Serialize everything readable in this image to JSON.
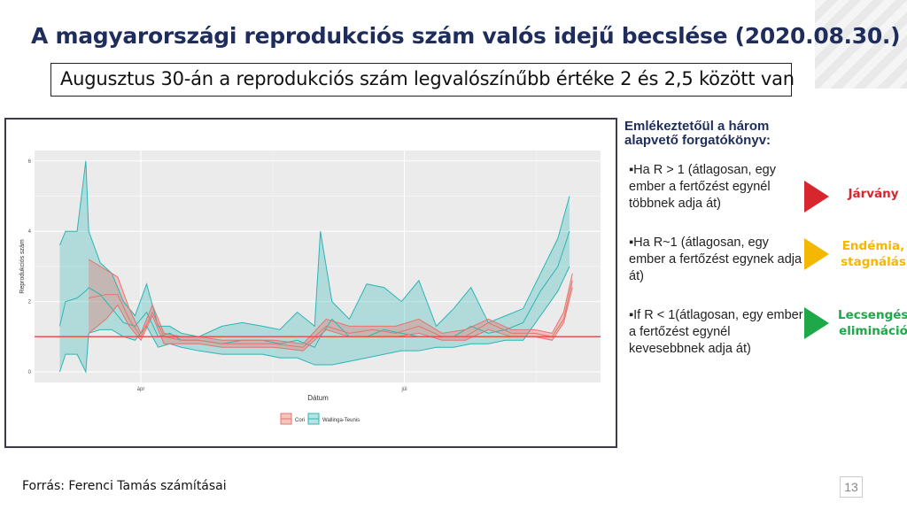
{
  "slide": {
    "title": "A magyarországi reprodukciós szám valós idejű becslése (2020.08.30.)",
    "subtitle": "Augusztus 30-án a reprodukciós szám legvalószínűbb értéke 2 és 2,5 között van",
    "source": "Forrás: Ferenci Tamás számításai",
    "page_number": "13"
  },
  "panel": {
    "title": "Emlékeztetőül a három alapvető forgatókönyv:",
    "scenarios": [
      {
        "text": "▪Ha R > 1 (átlagosan, egy ember a fertőzést egynél többnek adja át)",
        "result": "Járvány",
        "color": "#d7262e"
      },
      {
        "text": "▪Ha R~1 (átlagosan, egy ember  a fertőzést egynek adja át)",
        "result": "Endémia, stagnálás",
        "color": "#f5b800"
      },
      {
        "text": "▪If R < 1(átlagosan, egy ember a fertőzést egynél kevesebbnek adja át)",
        "result": "Lecsengés, elimináció",
        "color": "#1ea84a"
      }
    ]
  },
  "chart_data": {
    "type": "line",
    "title": "",
    "xlabel": "Dátum",
    "ylabel": "Reprodukciós szám",
    "ylim": [
      -0.3,
      6.3
    ],
    "yticks": [
      "0",
      "2",
      "4",
      "6"
    ],
    "x_unit": "days since 2020-04-01",
    "xlim": [
      -35,
      160
    ],
    "xticks": [
      {
        "label": "ápr",
        "day": 0
      },
      {
        "label": "júl",
        "day": 91
      }
    ],
    "reference_line": 1,
    "legend": {
      "position": "bottom",
      "entries": [
        "Cori",
        "Wallinga-Teunis"
      ]
    },
    "series": [
      {
        "name": "Wallinga-Teunis",
        "color": "#2bb5b5",
        "day": [
          -28,
          -26,
          -22,
          -19,
          -18,
          -14,
          -10,
          -6,
          -2,
          2,
          6,
          10,
          14,
          20,
          28,
          35,
          42,
          48,
          54,
          60,
          62,
          66,
          72,
          78,
          84,
          90,
          96,
          102,
          108,
          114,
          120,
          126,
          132,
          138,
          144,
          148
        ],
        "mean": [
          1.3,
          2.0,
          2.1,
          2.3,
          2.4,
          2.2,
          1.8,
          1.4,
          1.3,
          1.7,
          1.0,
          1.1,
          0.9,
          0.9,
          0.8,
          0.9,
          0.9,
          0.8,
          0.9,
          0.7,
          1.0,
          1.5,
          1.0,
          1.0,
          1.2,
          1.1,
          1.0,
          1.0,
          1.0,
          1.3,
          1.1,
          1.2,
          1.4,
          2.3,
          3.0,
          4.0
        ],
        "lower": [
          0,
          0.5,
          0.5,
          0,
          1.1,
          1.2,
          1.2,
          1.0,
          0.9,
          1.3,
          0.7,
          0.8,
          0.7,
          0.6,
          0.5,
          0.5,
          0.5,
          0.4,
          0.4,
          0.2,
          0.2,
          0.2,
          0.3,
          0.4,
          0.5,
          0.6,
          0.6,
          0.7,
          0.7,
          0.8,
          0.8,
          0.9,
          0.9,
          1.6,
          2.3,
          3.0
        ],
        "upper": [
          3.6,
          4.0,
          4.0,
          6.0,
          4.0,
          3.1,
          2.8,
          2.0,
          1.6,
          2.5,
          1.3,
          1.3,
          1.1,
          1.0,
          1.3,
          1.4,
          1.3,
          1.2,
          1.7,
          1.3,
          4.0,
          2.0,
          1.5,
          2.5,
          2.4,
          2.0,
          2.6,
          1.3,
          1.8,
          2.4,
          1.4,
          1.6,
          1.8,
          2.8,
          3.8,
          5.0
        ]
      },
      {
        "name": "Cori",
        "color": "#e8736b",
        "day": [
          -18,
          -12,
          -8,
          -4,
          0,
          4,
          8,
          14,
          20,
          28,
          36,
          46,
          56,
          64,
          72,
          80,
          88,
          96,
          104,
          112,
          120,
          128,
          136,
          142,
          146,
          149
        ],
        "mean": [
          2.1,
          2.2,
          2.2,
          1.5,
          1.0,
          1.7,
          1.0,
          0.9,
          0.9,
          0.8,
          0.8,
          0.8,
          0.7,
          1.3,
          1.1,
          1.2,
          1.1,
          1.3,
          1.0,
          1.0,
          1.4,
          1.1,
          1.1,
          1.0,
          1.5,
          2.6
        ],
        "lower": [
          1.1,
          1.5,
          1.9,
          1.3,
          0.9,
          1.6,
          0.8,
          0.8,
          0.8,
          0.7,
          0.7,
          0.7,
          0.6,
          1.2,
          1.0,
          1.0,
          1.0,
          1.1,
          0.9,
          0.9,
          1.2,
          1.0,
          1.0,
          0.9,
          1.4,
          2.4
        ],
        "upper": [
          3.2,
          2.9,
          2.7,
          1.8,
          1.1,
          1.9,
          1.1,
          1.0,
          1.0,
          0.9,
          0.9,
          0.9,
          0.8,
          1.5,
          1.3,
          1.3,
          1.3,
          1.5,
          1.1,
          1.2,
          1.5,
          1.2,
          1.2,
          1.1,
          1.7,
          2.8
        ]
      }
    ]
  }
}
